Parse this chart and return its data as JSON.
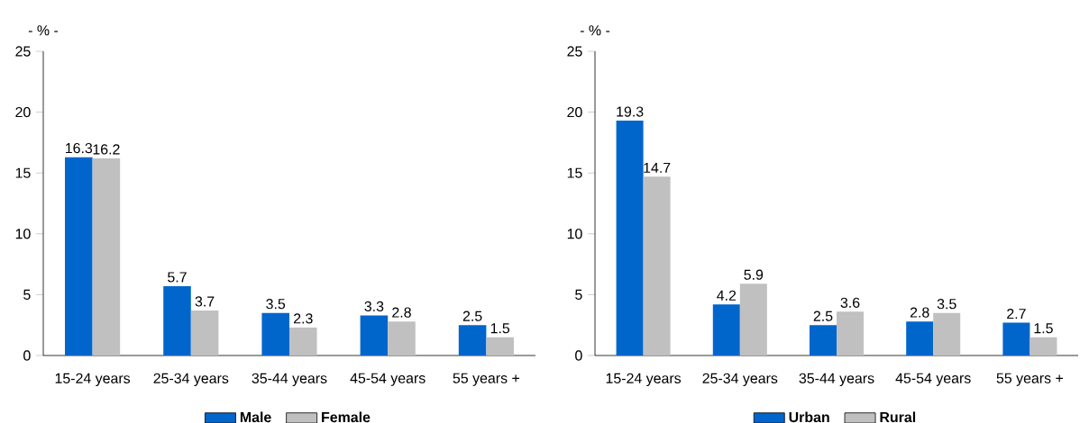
{
  "chart_data": [
    {
      "type": "bar",
      "ylabel": "- % -",
      "categories": [
        "15-24 years",
        "25-34 years",
        "35-44 years",
        "45-54 years",
        "55 years +"
      ],
      "series": [
        {
          "name": "Male",
          "color": "#0066cc",
          "values": [
            16.3,
            5.7,
            3.5,
            3.3,
            2.5
          ]
        },
        {
          "name": "Female",
          "color": "#c0c0c0",
          "values": [
            16.2,
            3.7,
            2.3,
            2.8,
            1.5
          ]
        }
      ],
      "ylim": [
        0,
        25
      ],
      "yticks": [
        0,
        5,
        10,
        15,
        20,
        25
      ],
      "data_labels": true,
      "legend": "bottom"
    },
    {
      "type": "bar",
      "ylabel": "- % -",
      "categories": [
        "15-24 years",
        "25-34 years",
        "35-44 years",
        "45-54 years",
        "55 years +"
      ],
      "series": [
        {
          "name": "Urban",
          "color": "#0066cc",
          "values": [
            19.3,
            4.2,
            2.5,
            2.8,
            2.7
          ]
        },
        {
          "name": "Rural",
          "color": "#c0c0c0",
          "values": [
            14.7,
            5.9,
            3.6,
            3.5,
            1.5
          ]
        }
      ],
      "ylim": [
        0,
        25
      ],
      "yticks": [
        0,
        5,
        10,
        15,
        20,
        25
      ],
      "data_labels": true,
      "legend": "bottom"
    }
  ]
}
